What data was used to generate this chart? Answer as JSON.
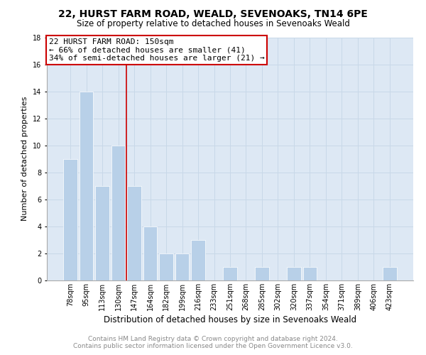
{
  "title": "22, HURST FARM ROAD, WEALD, SEVENOAKS, TN14 6PE",
  "subtitle": "Size of property relative to detached houses in Sevenoaks Weald",
  "xlabel": "Distribution of detached houses by size in Sevenoaks Weald",
  "ylabel": "Number of detached properties",
  "footer_line1": "Contains HM Land Registry data © Crown copyright and database right 2024.",
  "footer_line2": "Contains public sector information licensed under the Open Government Licence v3.0.",
  "categories": [
    "78sqm",
    "95sqm",
    "113sqm",
    "130sqm",
    "147sqm",
    "164sqm",
    "182sqm",
    "199sqm",
    "216sqm",
    "233sqm",
    "251sqm",
    "268sqm",
    "285sqm",
    "302sqm",
    "320sqm",
    "337sqm",
    "354sqm",
    "371sqm",
    "389sqm",
    "406sqm",
    "423sqm"
  ],
  "values": [
    9,
    14,
    7,
    10,
    7,
    4,
    2,
    2,
    3,
    0,
    1,
    0,
    1,
    0,
    1,
    1,
    0,
    0,
    0,
    0,
    1
  ],
  "bar_color": "#b8d0e8",
  "vline_pos": 3.5,
  "vline_color": "#cc0000",
  "annotation_box_text": "22 HURST FARM ROAD: 150sqm\n← 66% of detached houses are smaller (41)\n34% of semi-detached houses are larger (21) →",
  "annotation_box_color": "#cc0000",
  "annotation_box_fill": "#ffffff",
  "ylim": [
    0,
    18
  ],
  "yticks": [
    0,
    2,
    4,
    6,
    8,
    10,
    12,
    14,
    16,
    18
  ],
  "grid_color": "#c8d8e8",
  "background_color": "#dde8f4",
  "title_fontsize": 10,
  "subtitle_fontsize": 8.5,
  "xlabel_fontsize": 8.5,
  "ylabel_fontsize": 8,
  "tick_fontsize": 7,
  "annot_fontsize": 8,
  "footer_fontsize": 6.5
}
